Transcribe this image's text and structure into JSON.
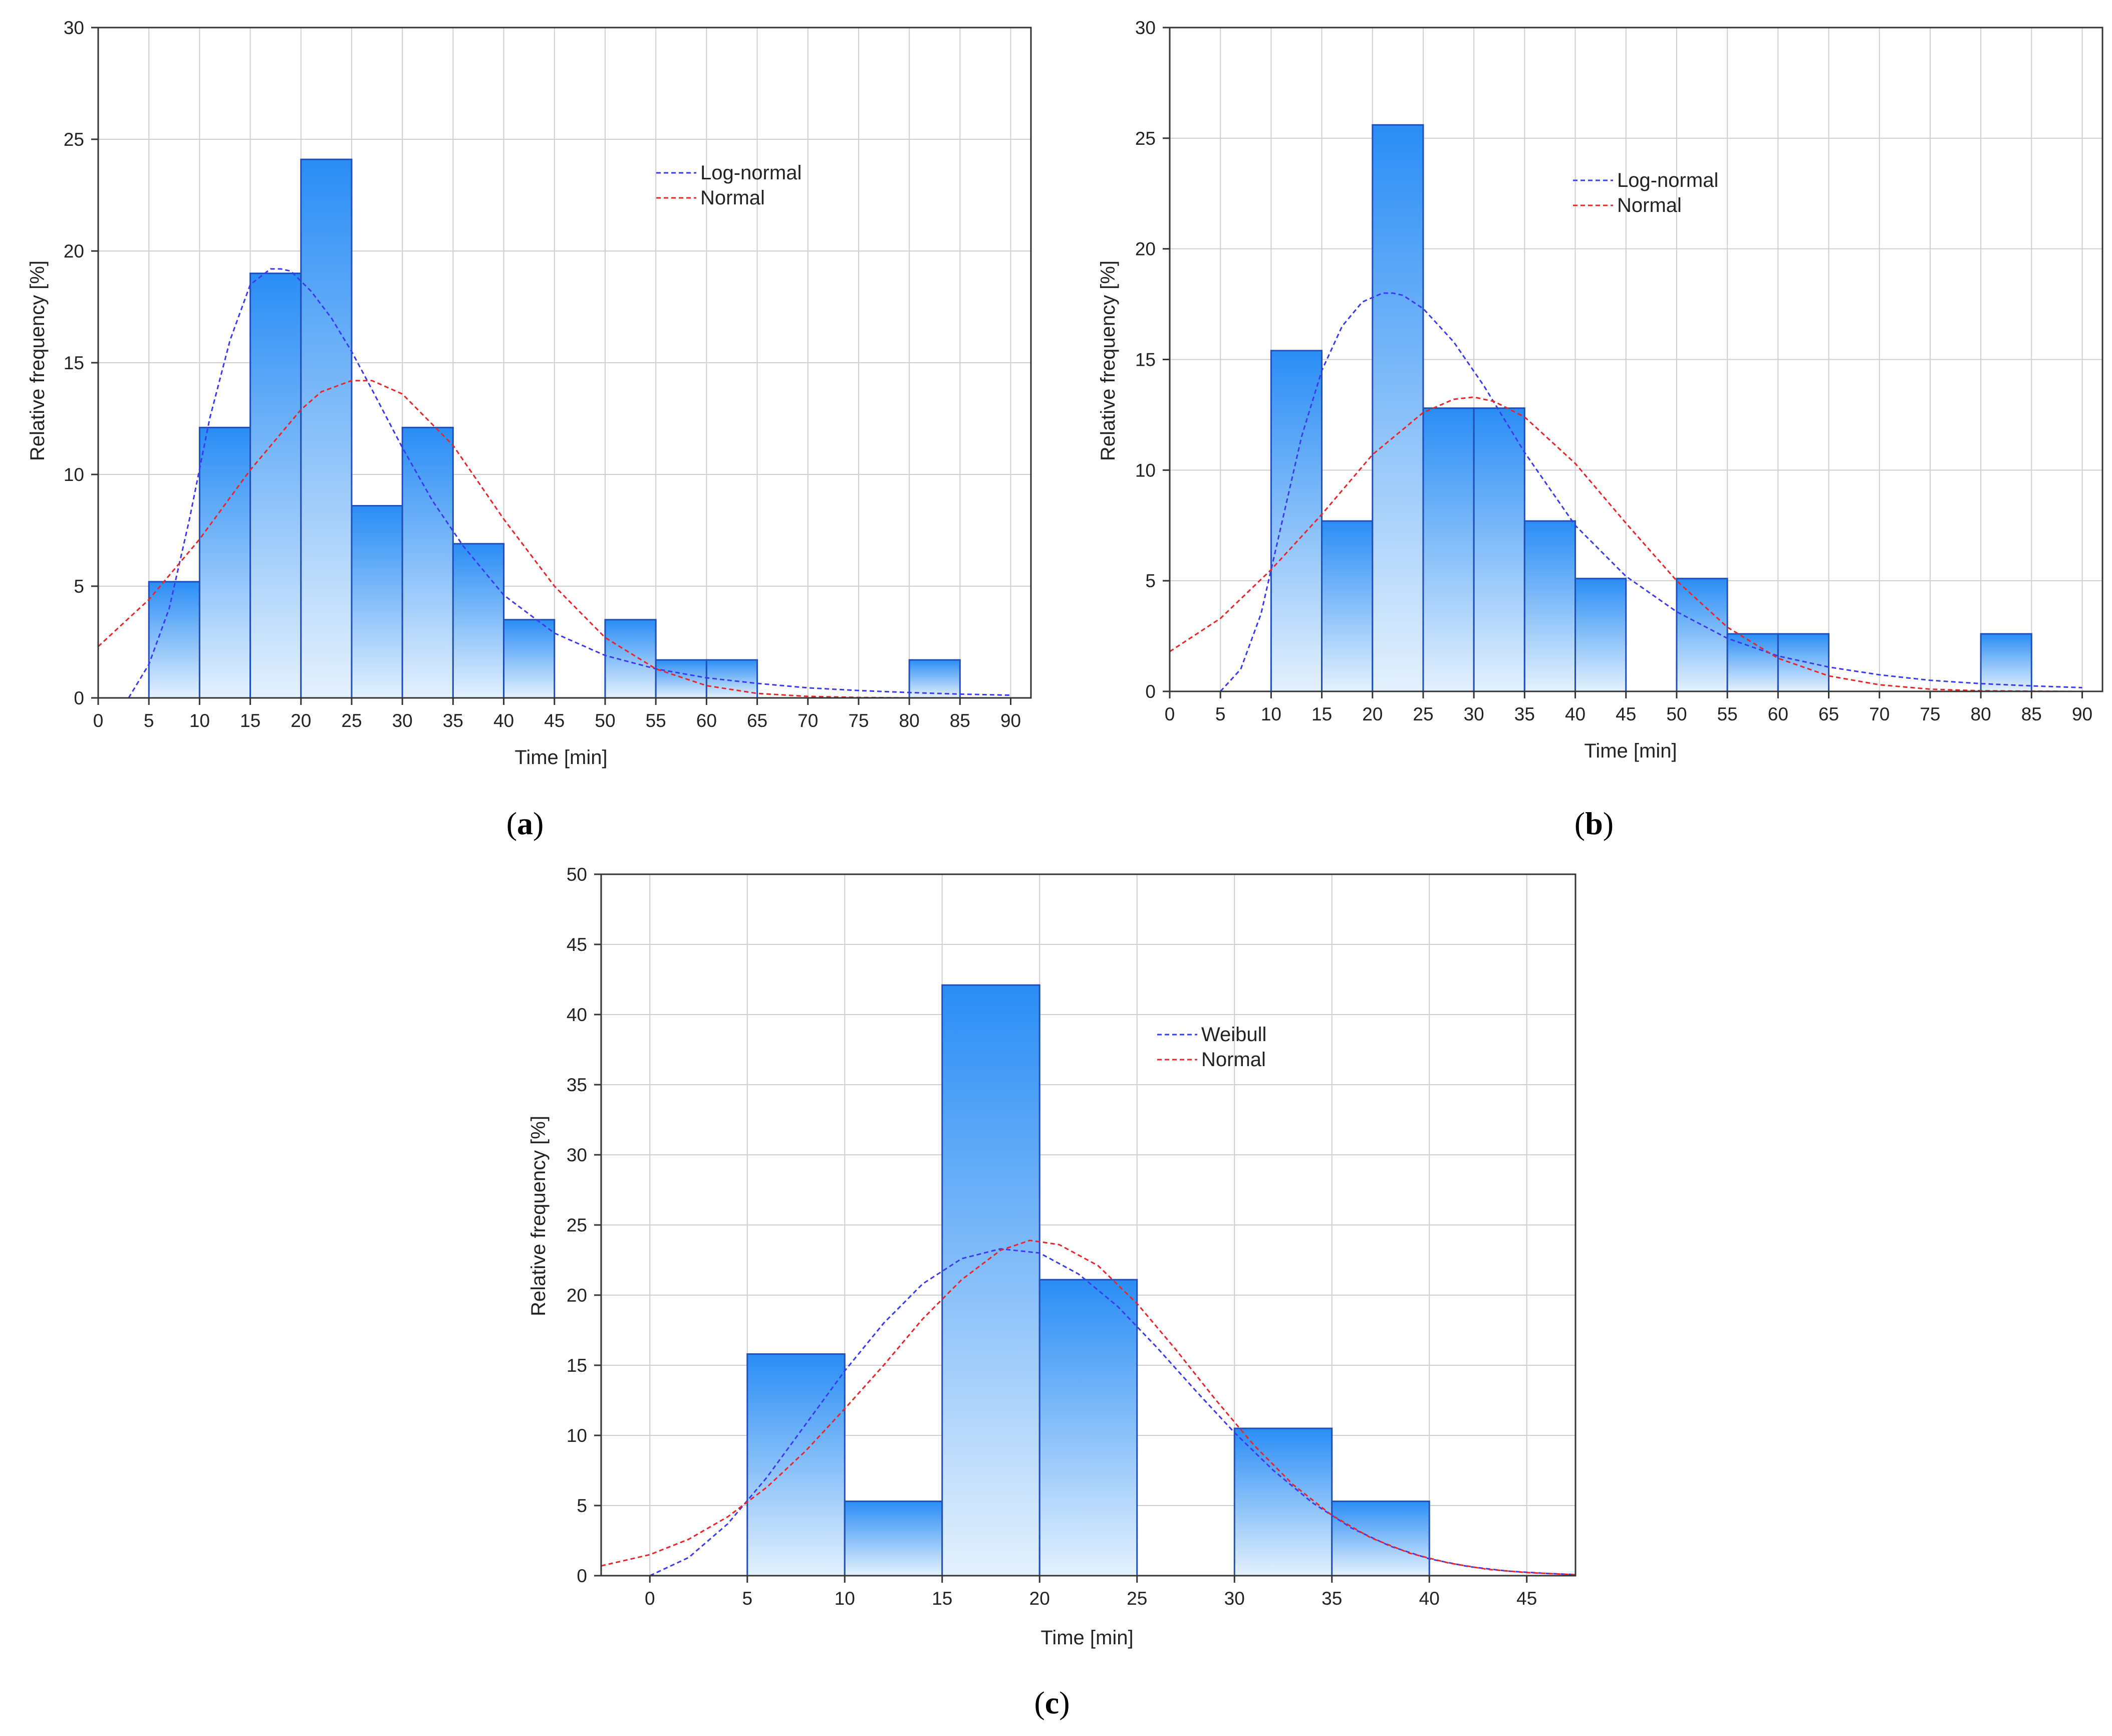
{
  "colors": {
    "bar_top": "#2a8df5",
    "bar_bottom": "#e4f1fd",
    "bar_stroke": "#1f4fb7",
    "grid": "#cfcfcf",
    "axis": "#333333",
    "blue_curve": "#3a3af0",
    "red_curve": "#e8262a"
  },
  "chart_data": [
    {
      "id": "a",
      "type": "bar",
      "caption_letter": "a",
      "xlabel": "Time [min]",
      "ylabel": "Relative frequency [%]",
      "xlim": [
        0,
        92
      ],
      "ylim": [
        0,
        30
      ],
      "xticks": [
        0,
        5,
        10,
        15,
        20,
        25,
        30,
        35,
        40,
        45,
        50,
        55,
        60,
        65,
        70,
        75,
        80,
        85,
        90
      ],
      "yticks": [
        0,
        5,
        10,
        15,
        20,
        25,
        30
      ],
      "bin_width": 5,
      "bins": [
        {
          "start": 5,
          "value": 5.2
        },
        {
          "start": 10,
          "value": 12.1
        },
        {
          "start": 15,
          "value": 19.0
        },
        {
          "start": 20,
          "value": 24.1
        },
        {
          "start": 25,
          "value": 8.6
        },
        {
          "start": 30,
          "value": 12.1
        },
        {
          "start": 35,
          "value": 6.9
        },
        {
          "start": 40,
          "value": 3.5
        },
        {
          "start": 50,
          "value": 3.5
        },
        {
          "start": 55,
          "value": 1.7
        },
        {
          "start": 60,
          "value": 1.7
        },
        {
          "start": 80,
          "value": 1.7
        }
      ],
      "legend": [
        "Log-normal",
        "Normal"
      ],
      "series": [
        {
          "name": "Log-normal",
          "color_key": "blue_curve",
          "x": [
            3,
            5,
            7,
            9,
            11,
            13,
            15,
            17,
            18,
            19,
            21,
            23,
            25,
            27,
            30,
            33,
            36,
            40,
            45,
            50,
            55,
            60,
            65,
            70,
            75,
            80,
            85,
            90
          ],
          "y": [
            0.0,
            1.5,
            4.0,
            8.0,
            12.5,
            16.0,
            18.5,
            19.2,
            19.2,
            19.1,
            18.2,
            17.0,
            15.5,
            13.8,
            11.2,
            8.8,
            6.8,
            4.6,
            2.9,
            1.9,
            1.3,
            0.9,
            0.65,
            0.45,
            0.33,
            0.24,
            0.17,
            0.12
          ]
        },
        {
          "name": "Normal",
          "color_key": "red_curve",
          "x": [
            0,
            5,
            10,
            15,
            20,
            22,
            25,
            27,
            30,
            35,
            40,
            45,
            50,
            55,
            60,
            65,
            70,
            75,
            80,
            85,
            90
          ],
          "y": [
            2.3,
            4.4,
            7.1,
            10.2,
            12.9,
            13.7,
            14.2,
            14.2,
            13.6,
            11.3,
            8.0,
            5.0,
            2.7,
            1.3,
            0.55,
            0.2,
            0.07,
            0.02,
            0.0,
            0.0,
            0.0
          ]
        }
      ]
    },
    {
      "id": "b",
      "type": "bar",
      "caption_letter": "b",
      "xlabel": "Time [min]",
      "ylabel": "Relative frequency [%]",
      "xlim": [
        0,
        92
      ],
      "ylim": [
        0,
        30
      ],
      "xticks": [
        0,
        5,
        10,
        15,
        20,
        25,
        30,
        35,
        40,
        45,
        50,
        55,
        60,
        65,
        70,
        75,
        80,
        85,
        90
      ],
      "yticks": [
        0,
        5,
        10,
        15,
        20,
        25,
        30
      ],
      "bin_width": 5,
      "bins": [
        {
          "start": 10,
          "value": 15.4
        },
        {
          "start": 15,
          "value": 7.7
        },
        {
          "start": 20,
          "value": 25.6
        },
        {
          "start": 25,
          "value": 12.8
        },
        {
          "start": 30,
          "value": 12.8
        },
        {
          "start": 35,
          "value": 7.7
        },
        {
          "start": 40,
          "value": 5.1
        },
        {
          "start": 50,
          "value": 5.1
        },
        {
          "start": 55,
          "value": 2.6
        },
        {
          "start": 60,
          "value": 2.6
        },
        {
          "start": 80,
          "value": 2.6
        }
      ],
      "legend": [
        "Log-normal",
        "Normal"
      ],
      "series": [
        {
          "name": "Log-normal",
          "color_key": "blue_curve",
          "x": [
            5,
            7,
            9,
            11,
            13,
            15,
            17,
            19,
            21,
            22,
            23,
            25,
            28,
            31,
            35,
            40,
            45,
            50,
            55,
            60,
            65,
            70,
            75,
            80,
            85,
            90
          ],
          "y": [
            0.0,
            1.0,
            3.5,
            7.5,
            11.5,
            14.5,
            16.5,
            17.6,
            18.0,
            18.0,
            17.9,
            17.3,
            15.8,
            13.8,
            10.8,
            7.5,
            5.2,
            3.6,
            2.4,
            1.6,
            1.1,
            0.75,
            0.5,
            0.35,
            0.25,
            0.17
          ]
        },
        {
          "name": "Normal",
          "color_key": "red_curve",
          "x": [
            0,
            5,
            10,
            15,
            20,
            25,
            28,
            30,
            32,
            35,
            40,
            45,
            50,
            55,
            60,
            65,
            70,
            75,
            80,
            85,
            90
          ],
          "y": [
            1.8,
            3.3,
            5.5,
            8.0,
            10.7,
            12.6,
            13.2,
            13.3,
            13.1,
            12.4,
            10.3,
            7.6,
            5.0,
            2.9,
            1.5,
            0.7,
            0.3,
            0.1,
            0.03,
            0.01,
            0.0
          ]
        }
      ]
    },
    {
      "id": "c",
      "type": "bar",
      "caption_letter": "c",
      "xlabel": "Time [min]",
      "ylabel": "Relative frequency [%]",
      "xlim": [
        -2.5,
        47.5
      ],
      "ylim": [
        0,
        50
      ],
      "xticks": [
        0,
        5,
        10,
        15,
        20,
        25,
        30,
        35,
        40,
        45
      ],
      "yticks": [
        0,
        5,
        10,
        15,
        20,
        25,
        30,
        35,
        40,
        45,
        50
      ],
      "bin_width": 5,
      "bins": [
        {
          "start": 5,
          "value": 15.8
        },
        {
          "start": 10,
          "value": 5.3
        },
        {
          "start": 15,
          "value": 42.1
        },
        {
          "start": 20,
          "value": 21.1
        },
        {
          "start": 30,
          "value": 10.5
        },
        {
          "start": 35,
          "value": 5.3
        }
      ],
      "legend": [
        "Weibull",
        "Normal"
      ],
      "series": [
        {
          "name": "Weibull",
          "color_key": "blue_curve",
          "x": [
            0,
            2,
            4,
            6,
            8,
            10,
            12,
            14,
            16,
            18,
            20,
            22,
            24,
            26,
            28,
            30,
            32,
            34,
            36,
            38,
            40,
            42,
            44,
            46,
            47.5
          ],
          "y": [
            0.0,
            1.3,
            3.7,
            7.0,
            10.8,
            14.6,
            18.0,
            20.8,
            22.6,
            23.3,
            23.0,
            21.5,
            19.2,
            16.3,
            13.2,
            10.2,
            7.5,
            5.2,
            3.4,
            2.1,
            1.2,
            0.65,
            0.33,
            0.16,
            0.08
          ]
        },
        {
          "name": "Normal",
          "color_key": "red_curve",
          "x": [
            -2.5,
            0,
            2,
            4,
            6,
            8,
            10,
            12,
            14,
            16,
            18,
            19.5,
            21,
            23,
            25,
            27,
            29,
            31,
            33,
            35,
            37,
            39,
            41,
            43,
            45,
            47.5
          ],
          "y": [
            0.7,
            1.5,
            2.6,
            4.2,
            6.3,
            8.9,
            11.9,
            15.0,
            18.3,
            21.1,
            23.2,
            23.9,
            23.6,
            22.1,
            19.4,
            16.1,
            12.6,
            9.3,
            6.5,
            4.3,
            2.7,
            1.6,
            0.9,
            0.45,
            0.22,
            0.07
          ]
        }
      ]
    }
  ]
}
